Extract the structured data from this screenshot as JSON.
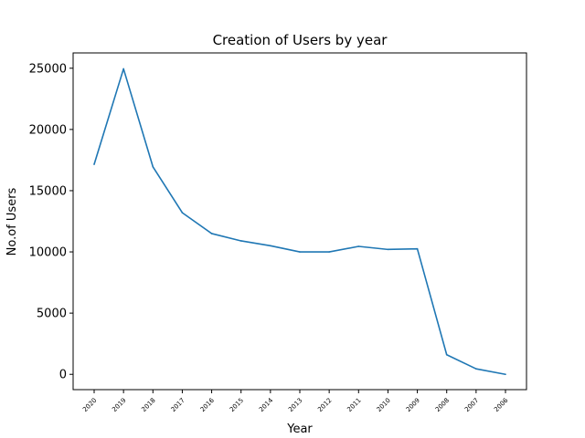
{
  "chart_data": {
    "type": "line",
    "title": "Creation of Users by year",
    "xlabel": "Year",
    "ylabel": "No.of Users",
    "categories": [
      "2020",
      "2019",
      "2018",
      "2017",
      "2016",
      "2015",
      "2014",
      "2013",
      "2012",
      "2011",
      "2010",
      "2009",
      "2008",
      "2007",
      "2006"
    ],
    "series": [
      {
        "values": [
          17150,
          24950,
          16950,
          13200,
          11500,
          10900,
          10500,
          10000,
          10000,
          10450,
          10200,
          10250,
          1600,
          450,
          0
        ]
      }
    ],
    "ylim": [
      -1250,
      26250
    ],
    "yticks": [
      0,
      5000,
      10000,
      15000,
      20000,
      25000
    ],
    "ytick_labels": [
      "0",
      "5000",
      "10000",
      "15000",
      "20000",
      "25000"
    ],
    "grid": false,
    "line_color": "#1f77b4"
  }
}
